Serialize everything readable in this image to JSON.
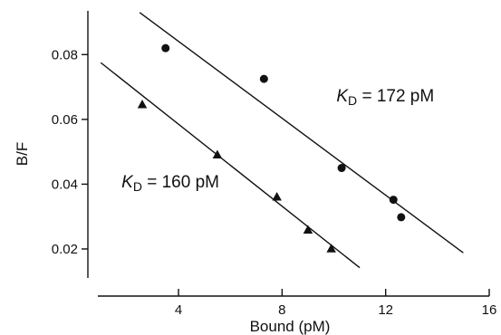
{
  "chart_data": {
    "type": "scatter",
    "xlabel": "Bound (pM)",
    "ylabel": "B/F",
    "xlim": [
      0.5,
      16
    ],
    "ylim": [
      0.013,
      0.0935
    ],
    "x_ticks": [
      4,
      8,
      12,
      16
    ],
    "x_tick_labels": [
      "4",
      "8",
      "12",
      "16"
    ],
    "y_ticks": [
      0.02,
      0.04,
      0.06,
      0.08
    ],
    "y_tick_labels": [
      "0.02",
      "0.04",
      "0.06",
      "0.08"
    ],
    "grid": false,
    "legend": "none",
    "series": [
      {
        "marker": "circle",
        "points": [
          {
            "x": 3.5,
            "y": 0.082
          },
          {
            "x": 7.3,
            "y": 0.0725
          },
          {
            "x": 10.3,
            "y": 0.045
          },
          {
            "x": 12.3,
            "y": 0.0352
          },
          {
            "x": 12.6,
            "y": 0.0298
          }
        ],
        "fit_line": {
          "x": [
            2.5,
            15
          ],
          "y": [
            0.093,
            0.0188
          ]
        },
        "annotation": {
          "k": "K",
          "sub": "D",
          "text": " = 172 pM",
          "x": 10.1,
          "y": 0.0655
        }
      },
      {
        "marker": "triangle",
        "points": [
          {
            "x": 2.6,
            "y": 0.0645
          },
          {
            "x": 5.5,
            "y": 0.049
          },
          {
            "x": 7.8,
            "y": 0.036
          },
          {
            "x": 9.0,
            "y": 0.0258
          },
          {
            "x": 9.9,
            "y": 0.02
          }
        ],
        "fit_line": {
          "x": [
            1.0,
            11.0
          ],
          "y": [
            0.0775,
            0.0142
          ]
        },
        "annotation": {
          "k": "K",
          "sub": "D",
          "text": " = 160 pM",
          "x": 1.8,
          "y": 0.039
        }
      }
    ]
  }
}
